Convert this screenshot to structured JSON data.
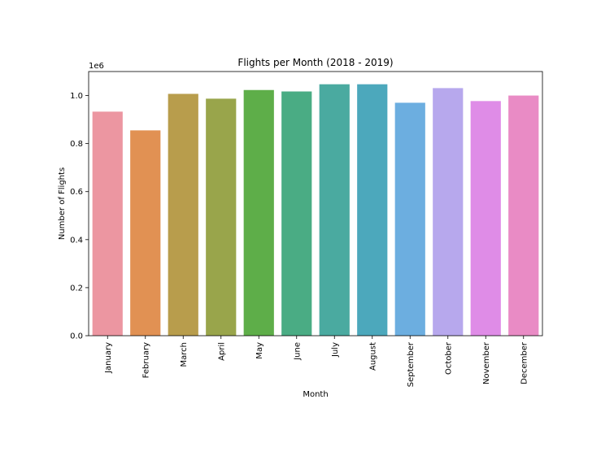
{
  "chart_data": {
    "type": "bar",
    "title": "Flights per Month (2018 - 2019)",
    "xlabel": "Month",
    "ylabel": "Number of Flights",
    "y_multiplier": "1e6",
    "categories": [
      "January",
      "February",
      "March",
      "April",
      "May",
      "June",
      "July",
      "August",
      "September",
      "October",
      "November",
      "December"
    ],
    "values": [
      933000,
      855000,
      1007000,
      987000,
      1023000,
      1017000,
      1047000,
      1047000,
      970000,
      1031000,
      977000,
      1000000
    ],
    "colors": [
      "#ec96a1",
      "#e19153",
      "#b89d4c",
      "#99a54b",
      "#5eae49",
      "#4aac84",
      "#4aaaa0",
      "#4ca8bc",
      "#6caee0",
      "#b7a8ed",
      "#df8ce7",
      "#e98bc5"
    ],
    "yticks": [
      0.0,
      0.2,
      0.4,
      0.6,
      0.8,
      1.0
    ],
    "ytick_labels": [
      "0.0",
      "0.2",
      "0.4",
      "0.6",
      "0.8",
      "1.0"
    ],
    "ylim": [
      0,
      1100000
    ],
    "grid": false,
    "legend": "none"
  }
}
